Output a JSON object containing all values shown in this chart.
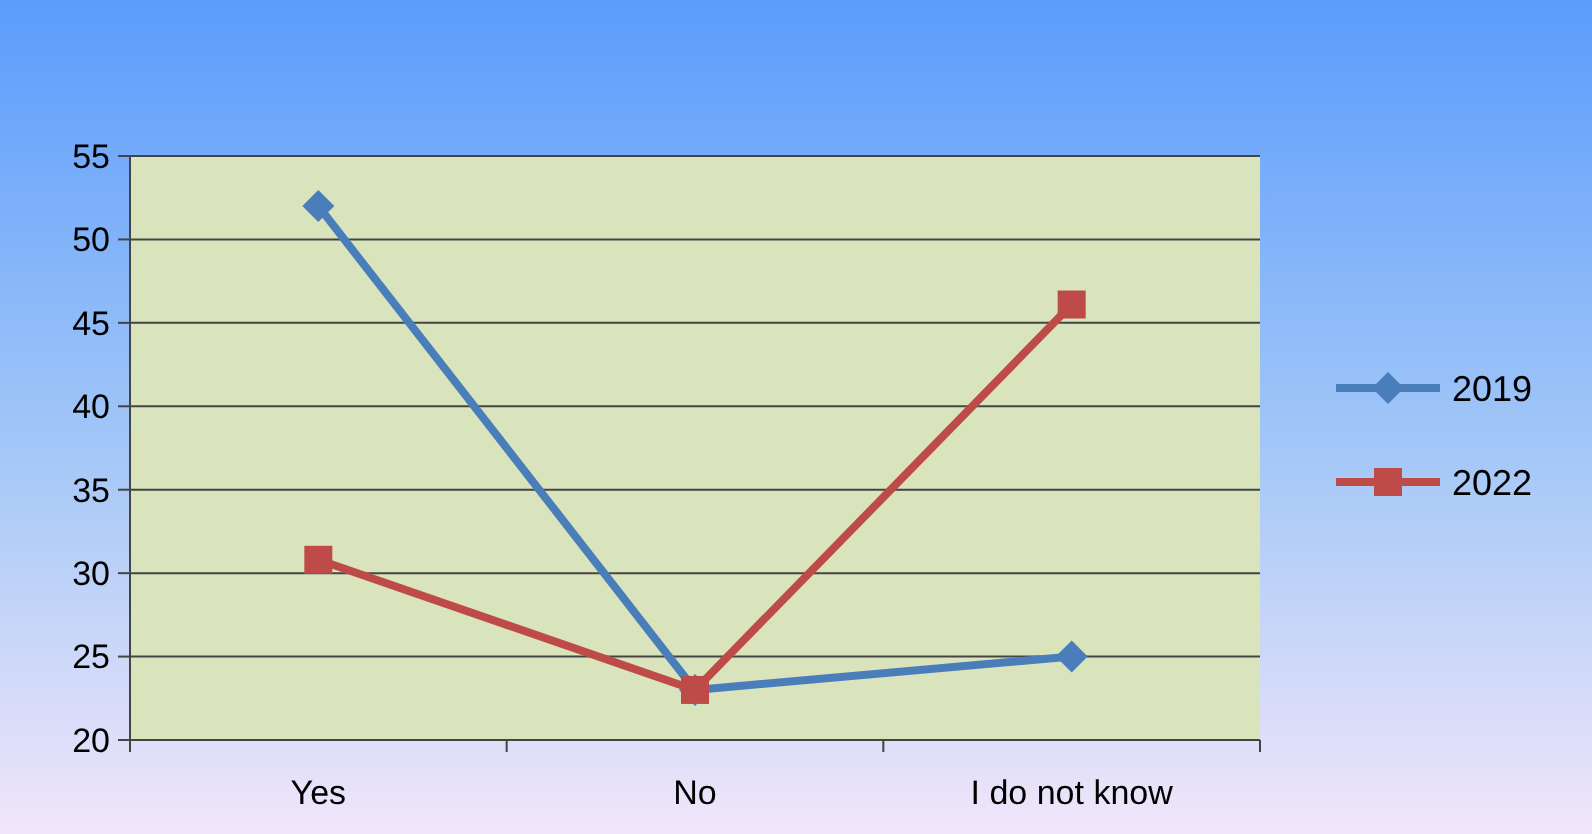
{
  "chart_data": {
    "type": "line",
    "categories": [
      "Yes",
      "No",
      "I do not know"
    ],
    "series": [
      {
        "name": "2019",
        "color": "#4a7ebb",
        "values": [
          52,
          23,
          25
        ],
        "marker": "diamond"
      },
      {
        "name": "2022",
        "color": "#be4b48",
        "values": [
          30.8,
          23,
          46.1
        ],
        "marker": "square"
      }
    ],
    "ylim": [
      20,
      55
    ],
    "yticks": [
      20,
      25,
      30,
      35,
      40,
      45,
      50,
      55
    ],
    "grid": "y",
    "legend": "right"
  }
}
